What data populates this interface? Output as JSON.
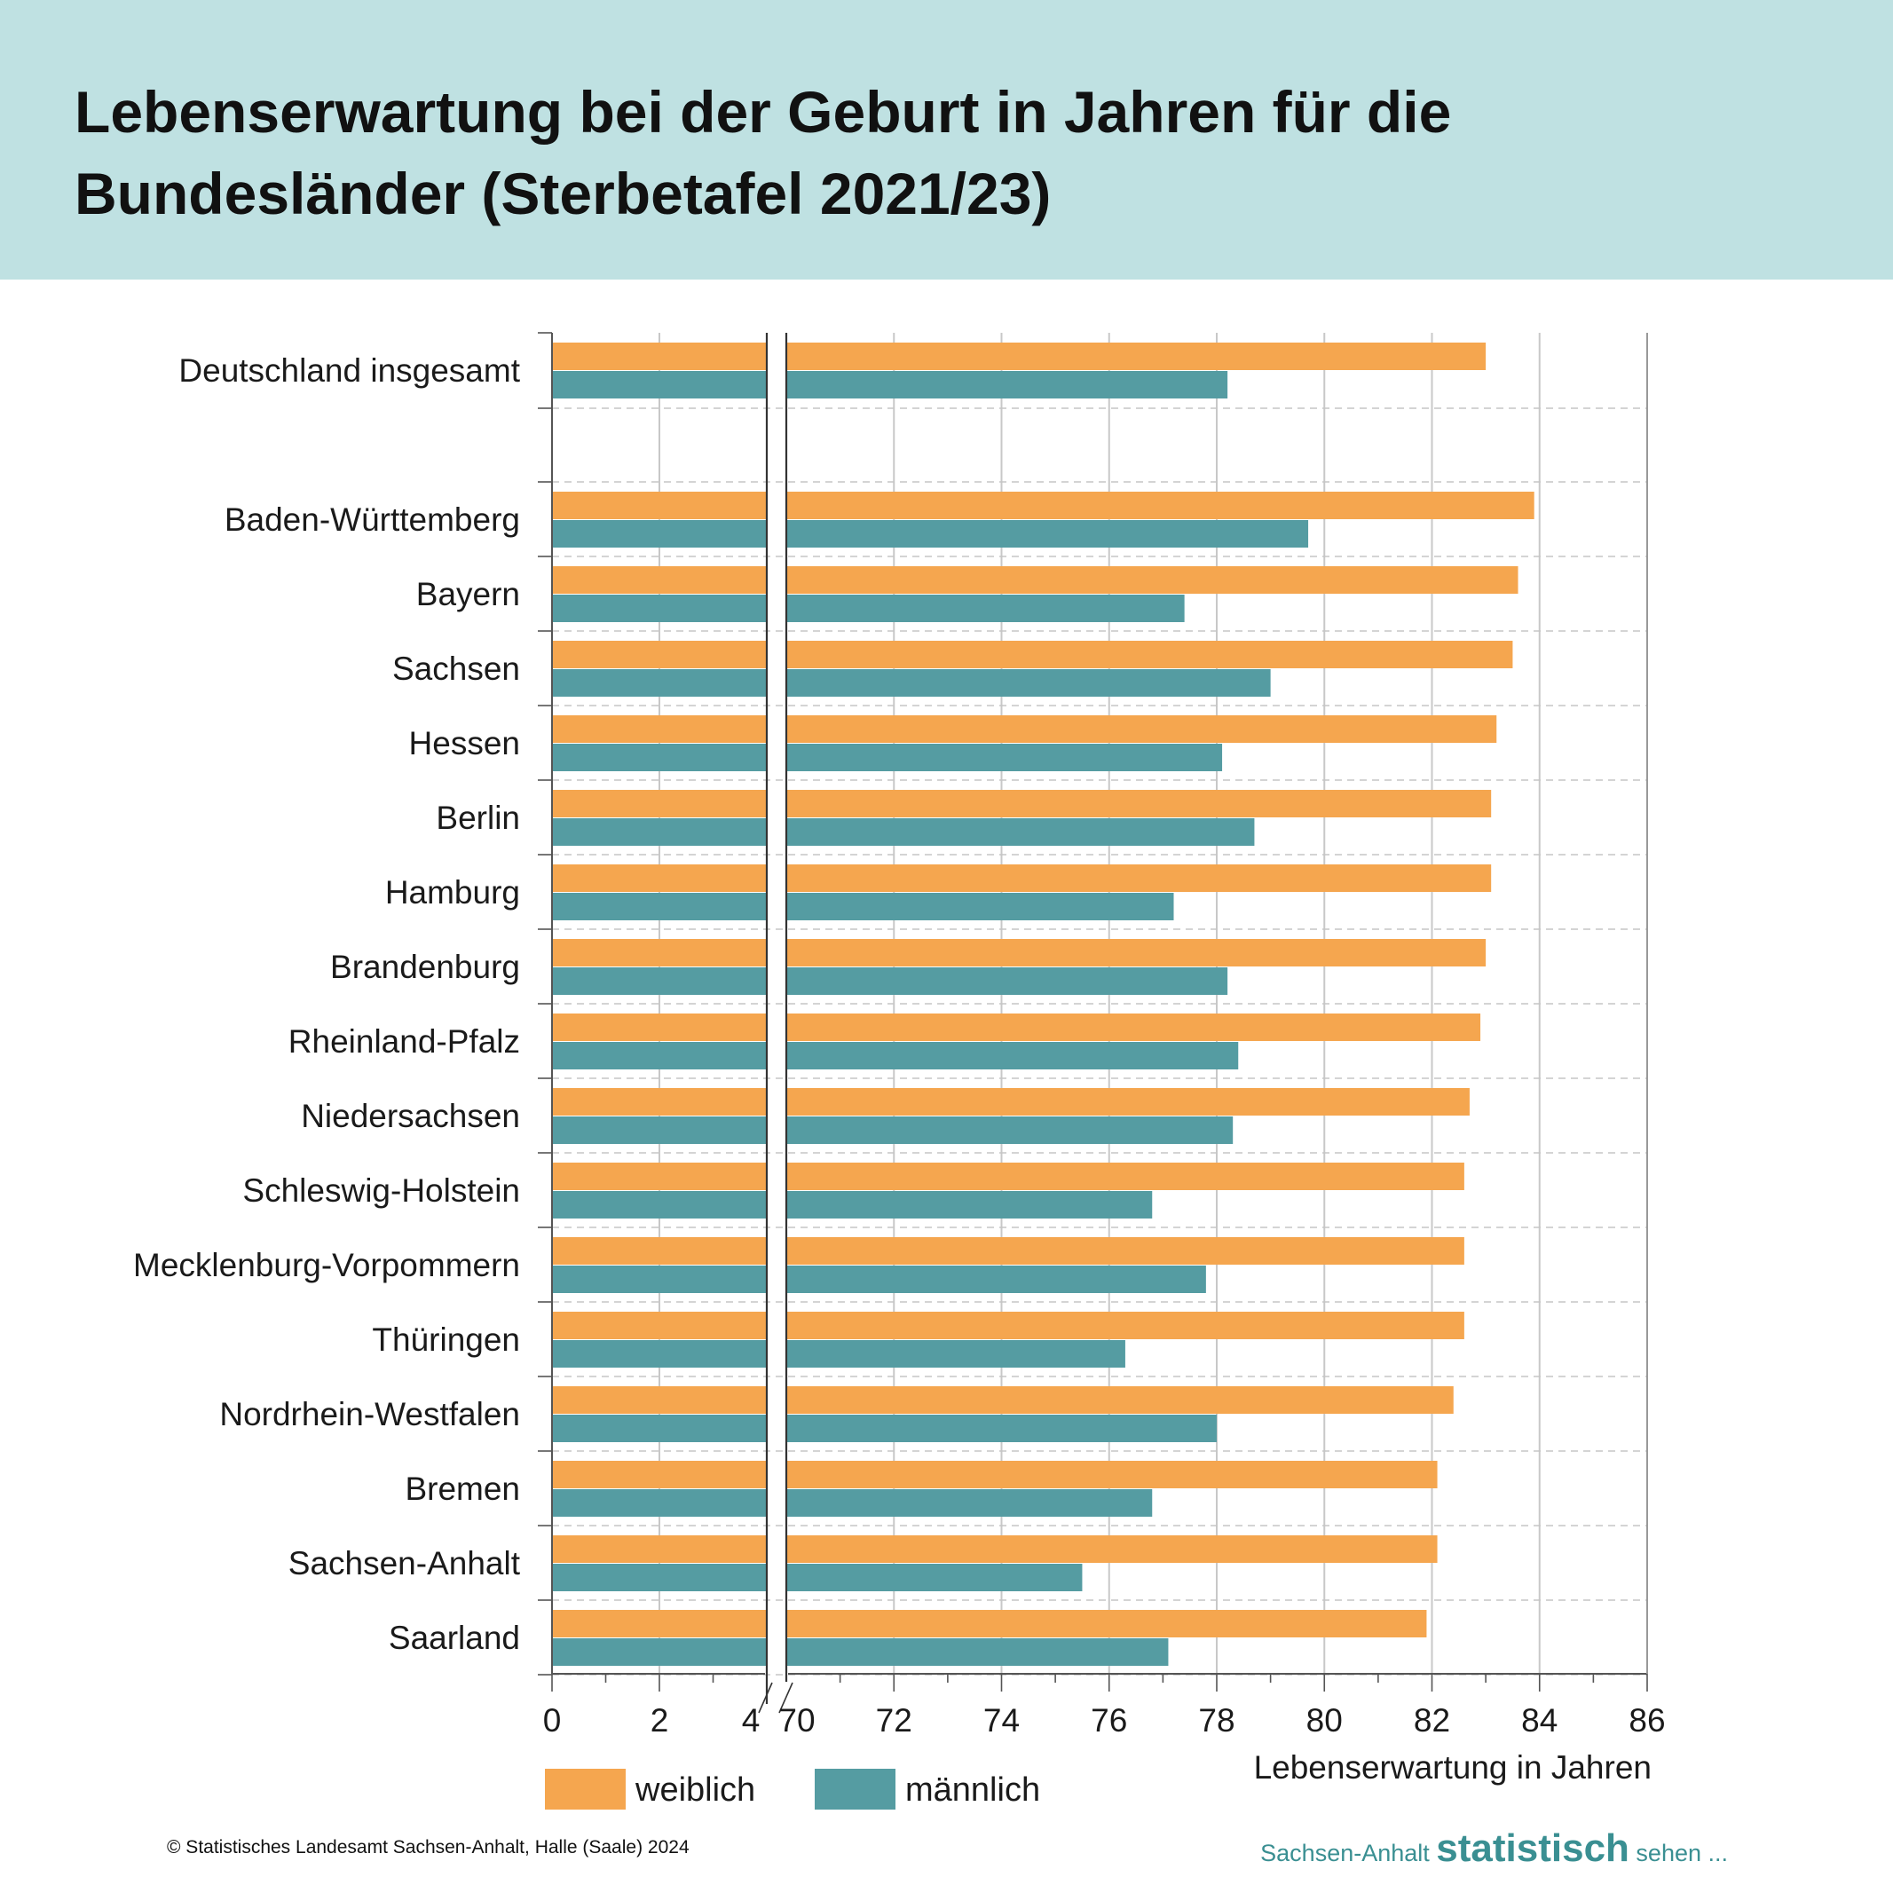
{
  "title": "Lebenserwartung bei der Geburt in Jahren für die Bundesländer (Sterbetafel 2021/23)",
  "footer": {
    "copyright": "© Statistisches Landesamt Sachsen-Anhalt, Halle (Saale) 2024",
    "brand_prefix": "Sachsen-Anhalt ",
    "brand_main": "statistisch",
    "brand_suffix": " sehen ..."
  },
  "colors": {
    "weiblich": "#f5a64f",
    "maennlich": "#559ca2",
    "header_bg": "#bfe1e2",
    "brand": "#3a8f92"
  },
  "chart_data": {
    "type": "bar",
    "orientation": "horizontal",
    "axis_break": [
      4,
      70
    ],
    "categories": [
      "Deutschland insgesamt",
      "Baden-Württemberg",
      "Bayern",
      "Sachsen",
      "Hessen",
      "Berlin",
      "Hamburg",
      "Brandenburg",
      "Rheinland-Pfalz",
      "Niedersachsen",
      "Schleswig-Holstein",
      "Mecklenburg-Vorpommern",
      "Thüringen",
      "Nordrhein-Westfalen",
      "Bremen",
      "Sachsen-Anhalt",
      "Saarland"
    ],
    "series": [
      {
        "name": "weiblich",
        "values": [
          83.0,
          83.9,
          83.6,
          83.5,
          83.2,
          83.1,
          83.1,
          83.0,
          82.9,
          82.7,
          82.6,
          82.6,
          82.6,
          82.4,
          82.1,
          82.1,
          81.9
        ]
      },
      {
        "name": "männlich",
        "values": [
          78.2,
          79.7,
          77.4,
          79.0,
          78.1,
          78.7,
          77.2,
          78.2,
          78.4,
          78.3,
          76.8,
          77.8,
          76.3,
          78.0,
          76.8,
          75.5,
          77.1
        ]
      }
    ],
    "x_ticks": [
      0,
      2,
      4,
      70,
      72,
      74,
      76,
      78,
      80,
      82,
      84,
      86
    ],
    "xlim": [
      70,
      86
    ],
    "xlabel": "Lebenserwartung in Jahren",
    "ylabel": "",
    "grid": true,
    "legend": "bottom-left"
  }
}
